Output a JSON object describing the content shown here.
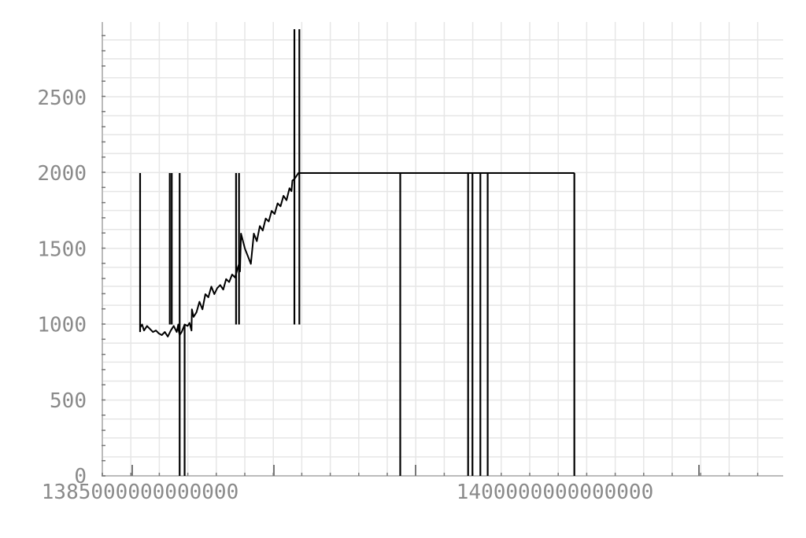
{
  "chart_data": {
    "type": "line",
    "title": "",
    "xlabel": "",
    "ylabel": "",
    "x_tick_labels": [
      "1385000000000000",
      "1400000000000000"
    ],
    "x_ticks": [
      1385000000000000,
      1400000000000000
    ],
    "y_tick_labels": [
      "0",
      "500",
      "1000",
      "1500",
      "2000",
      "2500"
    ],
    "y_ticks": [
      0,
      500,
      1000,
      1500,
      2000,
      2500
    ],
    "xlim": [
      1385000000000000,
      1407000000000000
    ],
    "ylim": [
      0,
      2950
    ],
    "grid": true,
    "colors": {
      "line": "#000000",
      "grid": "#e6e6e6",
      "tick_text": "#8a8a8a"
    },
    "series": [
      {
        "x": [
          1385000000000000,
          1385100000000000,
          1385200000000000,
          1385350000000000,
          1385500000000000,
          1385650000000000,
          1385800000000000,
          1385950000000000,
          1386100000000000,
          1386250000000000,
          1386400000000000,
          1386550000000000,
          1386700000000000,
          1386850000000000,
          1386930000000000,
          1386950000000000,
          1387000000000000,
          1387100000000000,
          1387250000000000,
          1387400000000000,
          1387500000000000,
          1387600000000000,
          1387620000000000,
          1387700000000000,
          1387850000000000,
          1388000000000000,
          1388150000000000,
          1388300000000000,
          1388450000000000,
          1388600000000000,
          1388750000000000,
          1388900000000000,
          1389050000000000,
          1389200000000000,
          1389350000000000,
          1389500000000000,
          1389650000000000,
          1389800000000000,
          1389950000000000,
          1390000000000000,
          1390050000000000,
          1390100000000000,
          1390200000000000,
          1390300000000000,
          1390450000000000,
          1390600000000000,
          1390750000000000,
          1390900000000000,
          1391050000000000,
          1391200000000000,
          1391350000000000,
          1391500000000000,
          1391650000000000,
          1391800000000000,
          1391950000000000,
          1392100000000000,
          1392250000000000,
          1392400000000000,
          1392550000000000,
          1392650000000000,
          1392700000000000,
          1392800000000000,
          1392900000000000,
          1393000000000000,
          1393150000000000,
          1393300000000000,
          1393450000000000,
          1393600000000000,
          1393800000000000,
          1394000000000000,
          1394200000000000,
          1394400000000000,
          1394600000000000,
          1394800000000000,
          1395000000000000,
          1395200000000000,
          1395400000000000,
          1395600000000000,
          1395800000000000,
          1396000000000000,
          1396200000000000,
          1396400000000000,
          1396600000000000,
          1396800000000000,
          1397000000000000,
          1397200000000000,
          1397400000000000,
          1397600000000000,
          1397750000000000,
          1397800000000000,
          1397850000000000,
          1398000000000000,
          1398200000000000,
          1398400000000000,
          1398600000000000,
          1398800000000000,
          1399000000000000,
          1399200000000000,
          1399400000000000,
          1399600000000000,
          1399800000000000,
          1400000000000000,
          1400200000000000,
          1400400000000000,
          1400600000000000,
          1400800000000000,
          1400900000000000,
          1400950000000000,
          1401000000000000,
          1401100000000000,
          1401200000000000,
          1401280000000000,
          1401300000000000,
          1401400000000000,
          1401600000000000,
          1401800000000000,
          1402000000000000,
          1402200000000000,
          1402400000000000,
          1402600000000000,
          1402800000000000,
          1403000000000000,
          1403200000000000,
          1403400000000000,
          1403600000000000,
          1403800000000000,
          1404000000000000,
          1404200000000000,
          1404400000000000,
          1404600000000000,
          1404800000000000,
          1405000000000000,
          1405200000000000,
          1405400000000000,
          1405600000000000,
          1405800000000000,
          1406000000000000,
          1406200000000000,
          1406400000000000,
          1406600000000000,
          1406800000000000,
          1406950000000000
        ],
        "y": [
          980,
          1000,
          960,
          990,
          970,
          950,
          960,
          940,
          930,
          950,
          920,
          960,
          990,
          950,
          1000,
          960,
          930,
          950,
          1000,
          990,
          1010,
          960,
          1100,
          1050,
          1080,
          1150,
          1100,
          1200,
          1180,
          1250,
          1200,
          1240,
          1260,
          1230,
          1300,
          1280,
          1330,
          1310,
          1380,
          1400,
          1350,
          1600,
          1550,
          1500,
          1450,
          1400,
          1600,
          1550,
          1650,
          1620,
          1700,
          1680,
          1750,
          1730,
          1800,
          1780,
          1850,
          1820,
          1900,
          1880,
          1950,
          1960,
          1980,
          2000,
          2000,
          2000,
          2000,
          2000,
          2000,
          2000,
          2000,
          2000,
          2000,
          2000,
          2000,
          2000,
          2000,
          2000,
          2000,
          2000,
          2000,
          2000,
          2000,
          2000,
          2000,
          2000,
          2000,
          2000,
          2000,
          2000,
          2000,
          2000,
          2000,
          2000,
          2000,
          2000,
          2000,
          2000,
          2000,
          2000,
          2000,
          2000,
          2000,
          2000,
          2000,
          2000,
          2000,
          2000,
          2000,
          2000,
          2000,
          2000,
          2000,
          2000,
          2000,
          2000,
          2000,
          2000,
          2000,
          2000,
          2000,
          2000,
          2000,
          2000,
          2000,
          2000,
          2000,
          2000,
          2000,
          2000,
          2000,
          2000,
          2000,
          2000,
          2000,
          2000,
          2000,
          2000,
          2000,
          2000,
          2000,
          2000
        ]
      }
    ],
    "spikes": [
      {
        "x": 1385000000000000,
        "y_from": 950,
        "y_to": 2000
      },
      {
        "x": 1386500000000000,
        "y_from": 1000,
        "y_to": 2000
      },
      {
        "x": 1386600000000000,
        "y_from": 1000,
        "y_to": 2000
      },
      {
        "x": 1387000000000000,
        "y_from": 0,
        "y_to": 2000
      },
      {
        "x": 1387250000000000,
        "y_from": 0,
        "y_to": 1000
      },
      {
        "x": 1389850000000000,
        "y_from": 1000,
        "y_to": 2000
      },
      {
        "x": 1390000000000000,
        "y_from": 1000,
        "y_to": 2000
      },
      {
        "x": 1392800000000000,
        "y_from": 1000,
        "y_to": 2950
      },
      {
        "x": 1393050000000000,
        "y_from": 1000,
        "y_to": 2950
      },
      {
        "x": 1398150000000000,
        "y_from": 0,
        "y_to": 2000
      },
      {
        "x": 1401580000000000,
        "y_from": 0,
        "y_to": 2000
      },
      {
        "x": 1401800000000000,
        "y_from": 0,
        "y_to": 2000
      },
      {
        "x": 1402200000000000,
        "y_from": 0,
        "y_to": 2000
      },
      {
        "x": 1402570000000000,
        "y_from": 0,
        "y_to": 2000
      },
      {
        "x": 1406950000000000,
        "y_from": 0,
        "y_to": 2000
      }
    ]
  }
}
